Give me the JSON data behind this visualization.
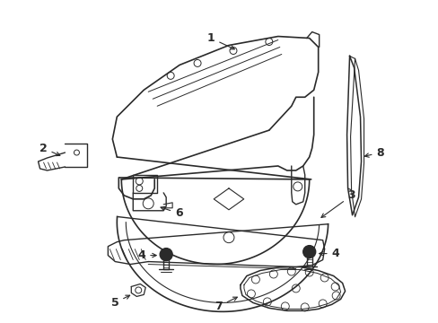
{
  "bg_color": "#ffffff",
  "line_color": "#2a2a2a",
  "lw": 1.0,
  "figsize": [
    4.89,
    3.6
  ],
  "dpi": 100
}
